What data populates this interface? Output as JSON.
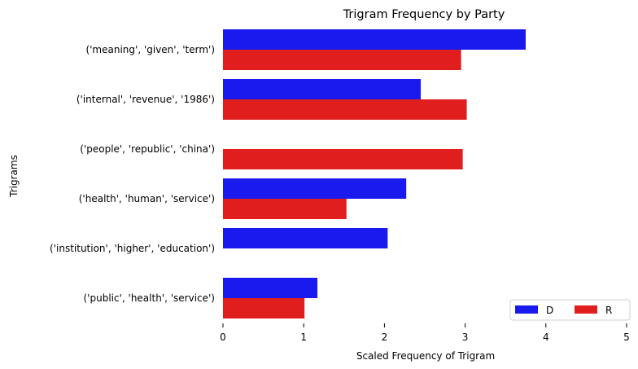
{
  "chart_data": {
    "type": "bar",
    "orientation": "horizontal",
    "title": "Trigram Frequency by Party",
    "xlabel": "Scaled Frequency of Trigram",
    "ylabel": "Trigrams",
    "xlim": [
      0,
      5
    ],
    "xticks": [
      "0",
      "1",
      "2",
      "3",
      "4",
      "5"
    ],
    "categories": [
      "('meaning', 'given', 'term')",
      "('internal', 'revenue', '1986')",
      "('people', 'republic', 'china')",
      "('health', 'human', 'service')",
      "('institution', 'higher', 'education')",
      "('public', 'health', 'service')"
    ],
    "series": [
      {
        "name": "D",
        "color": "#1a1aee",
        "values": [
          3.75,
          2.45,
          0,
          2.27,
          2.04,
          1.17
        ]
      },
      {
        "name": "R",
        "color": "#e01e1e",
        "values": [
          2.95,
          3.02,
          2.97,
          1.53,
          0,
          1.01
        ]
      }
    ],
    "legend": {
      "placement": "lower-right",
      "columns": 2
    },
    "grid": false
  }
}
